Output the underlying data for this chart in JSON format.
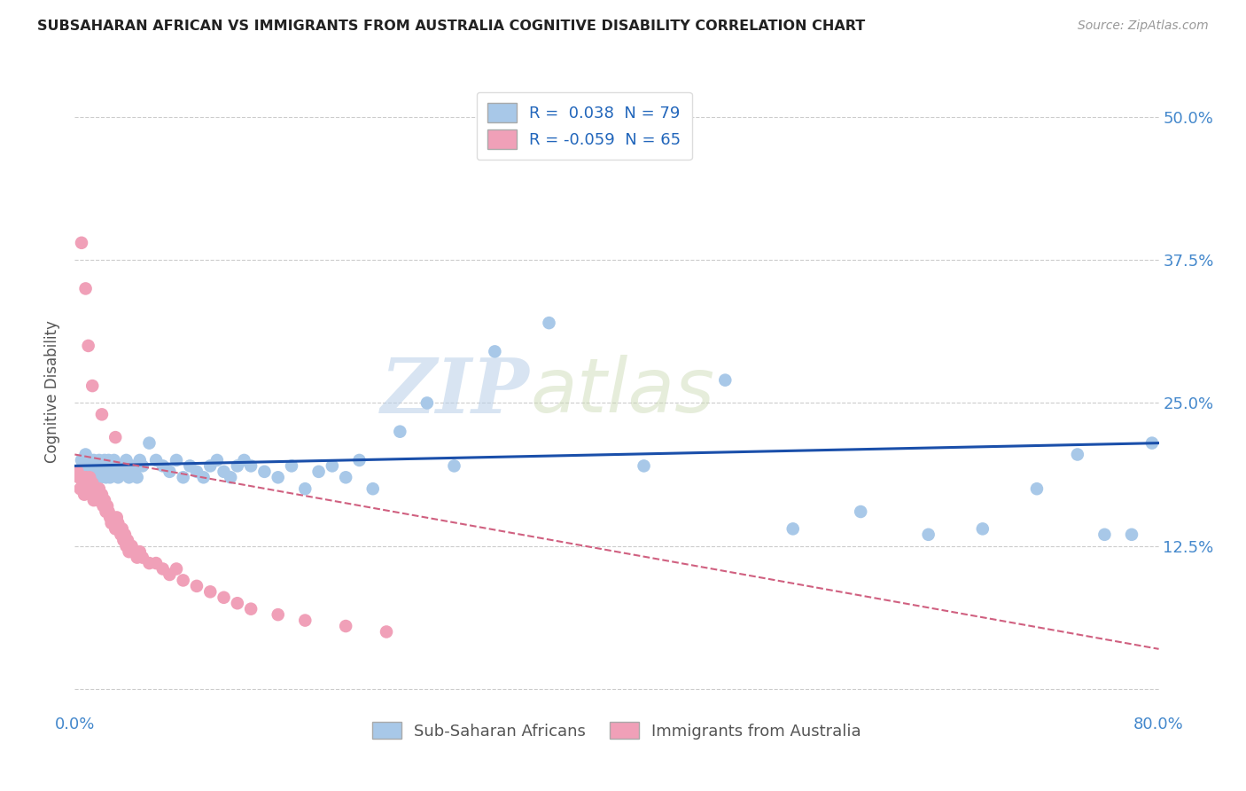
{
  "title": "SUBSAHARAN AFRICAN VS IMMIGRANTS FROM AUSTRALIA COGNITIVE DISABILITY CORRELATION CHART",
  "source": "Source: ZipAtlas.com",
  "ylabel": "Cognitive Disability",
  "yticks": [
    0.0,
    0.125,
    0.25,
    0.375,
    0.5
  ],
  "ytick_labels_right": [
    "",
    "12.5%",
    "25.0%",
    "37.5%",
    "50.0%"
  ],
  "xlim": [
    0.0,
    0.8
  ],
  "ylim": [
    -0.02,
    0.54
  ],
  "color_blue": "#a8c8e8",
  "color_pink": "#f0a0b8",
  "line_blue": "#1a4faa",
  "line_pink": "#d06080",
  "watermark_zip": "ZIP",
  "watermark_atlas": "atlas",
  "blue_line_y0": 0.195,
  "blue_line_y1": 0.215,
  "pink_line_y0": 0.205,
  "pink_line_y1": 0.035,
  "blue_x": [
    0.003,
    0.005,
    0.006,
    0.007,
    0.008,
    0.009,
    0.01,
    0.011,
    0.012,
    0.013,
    0.014,
    0.015,
    0.016,
    0.017,
    0.018,
    0.019,
    0.02,
    0.021,
    0.022,
    0.023,
    0.024,
    0.025,
    0.026,
    0.027,
    0.028,
    0.029,
    0.03,
    0.031,
    0.032,
    0.034,
    0.036,
    0.038,
    0.04,
    0.042,
    0.044,
    0.046,
    0.048,
    0.05,
    0.055,
    0.06,
    0.065,
    0.07,
    0.075,
    0.08,
    0.085,
    0.09,
    0.095,
    0.1,
    0.105,
    0.11,
    0.115,
    0.12,
    0.125,
    0.13,
    0.14,
    0.15,
    0.16,
    0.17,
    0.18,
    0.19,
    0.2,
    0.21,
    0.22,
    0.24,
    0.26,
    0.28,
    0.31,
    0.35,
    0.42,
    0.48,
    0.53,
    0.58,
    0.63,
    0.67,
    0.71,
    0.74,
    0.76,
    0.78,
    0.795
  ],
  "blue_y": [
    0.19,
    0.2,
    0.195,
    0.185,
    0.205,
    0.195,
    0.19,
    0.2,
    0.185,
    0.195,
    0.2,
    0.19,
    0.185,
    0.195,
    0.2,
    0.185,
    0.195,
    0.19,
    0.2,
    0.185,
    0.195,
    0.2,
    0.185,
    0.195,
    0.19,
    0.2,
    0.195,
    0.19,
    0.185,
    0.195,
    0.19,
    0.2,
    0.185,
    0.195,
    0.19,
    0.185,
    0.2,
    0.195,
    0.215,
    0.2,
    0.195,
    0.19,
    0.2,
    0.185,
    0.195,
    0.19,
    0.185,
    0.195,
    0.2,
    0.19,
    0.185,
    0.195,
    0.2,
    0.195,
    0.19,
    0.185,
    0.195,
    0.175,
    0.19,
    0.195,
    0.185,
    0.2,
    0.175,
    0.225,
    0.25,
    0.195,
    0.295,
    0.32,
    0.195,
    0.27,
    0.14,
    0.155,
    0.135,
    0.14,
    0.175,
    0.205,
    0.135,
    0.135,
    0.215
  ],
  "pink_x": [
    0.002,
    0.003,
    0.004,
    0.005,
    0.006,
    0.007,
    0.008,
    0.009,
    0.01,
    0.011,
    0.012,
    0.013,
    0.014,
    0.015,
    0.016,
    0.017,
    0.018,
    0.019,
    0.02,
    0.021,
    0.022,
    0.023,
    0.024,
    0.025,
    0.026,
    0.027,
    0.028,
    0.029,
    0.03,
    0.031,
    0.032,
    0.033,
    0.034,
    0.035,
    0.036,
    0.037,
    0.038,
    0.039,
    0.04,
    0.042,
    0.044,
    0.046,
    0.048,
    0.05,
    0.055,
    0.06,
    0.065,
    0.07,
    0.075,
    0.08,
    0.09,
    0.1,
    0.11,
    0.12,
    0.13,
    0.15,
    0.17,
    0.2,
    0.23,
    0.005,
    0.008,
    0.01,
    0.013,
    0.02,
    0.03
  ],
  "pink_y": [
    0.19,
    0.185,
    0.175,
    0.185,
    0.18,
    0.17,
    0.185,
    0.18,
    0.175,
    0.185,
    0.175,
    0.18,
    0.165,
    0.175,
    0.17,
    0.165,
    0.175,
    0.165,
    0.17,
    0.16,
    0.165,
    0.155,
    0.16,
    0.155,
    0.15,
    0.145,
    0.15,
    0.145,
    0.14,
    0.15,
    0.145,
    0.14,
    0.135,
    0.14,
    0.13,
    0.135,
    0.125,
    0.13,
    0.12,
    0.125,
    0.12,
    0.115,
    0.12,
    0.115,
    0.11,
    0.11,
    0.105,
    0.1,
    0.105,
    0.095,
    0.09,
    0.085,
    0.08,
    0.075,
    0.07,
    0.065,
    0.06,
    0.055,
    0.05,
    0.39,
    0.35,
    0.3,
    0.265,
    0.24,
    0.22
  ]
}
